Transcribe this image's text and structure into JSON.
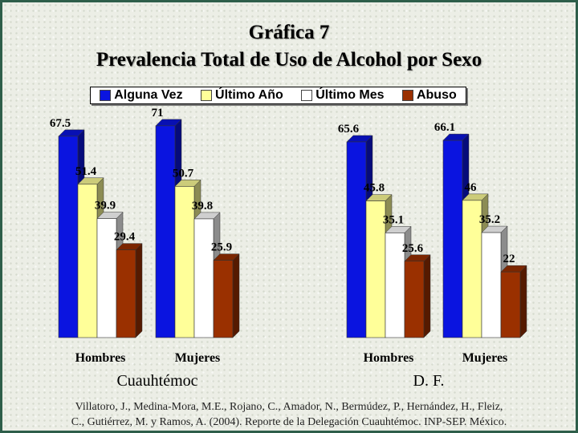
{
  "chart_data": {
    "type": "bar",
    "title": "Gráfica 7",
    "subtitle": "Prevalencia Total de Uso de Alcohol por Sexo",
    "groups": [
      "Cuauhtémoc",
      "D. F."
    ],
    "categories": [
      "Hombres",
      "Mujeres"
    ],
    "series": [
      {
        "name": "Alguna Vez",
        "color": "#0a14e0",
        "values": [
          [
            67.5,
            71
          ],
          [
            65.6,
            66.1
          ]
        ]
      },
      {
        "name": "Último Año",
        "color": "#ffff99",
        "values": [
          [
            51.4,
            50.7
          ],
          [
            45.8,
            46
          ]
        ]
      },
      {
        "name": "Último Mes",
        "color": "#ffffff",
        "values": [
          [
            39.9,
            39.8
          ],
          [
            35.1,
            35.2
          ]
        ]
      },
      {
        "name": "Abuso",
        "color": "#9a3000",
        "values": [
          [
            29.4,
            25.9
          ],
          [
            25.6,
            22
          ]
        ]
      }
    ],
    "value_labels": [
      [
        "67.5",
        "71"
      ],
      [
        "65.6",
        "66.1"
      ],
      [
        "51.4",
        "50.7"
      ],
      [
        "45.8",
        "46"
      ],
      [
        "39.9",
        "39.8"
      ],
      [
        "35.1",
        "35.2"
      ],
      [
        "29.4",
        "25.9"
      ],
      [
        "25.6",
        "22"
      ]
    ],
    "ylim": [
      0,
      80
    ],
    "grid": false,
    "legend_position": "top"
  },
  "source": {
    "line1": "Villatoro, J., Medina-Mora, M.E., Rojano, C., Amador, N., Bermúdez, P., Hernández, H., Fleiz,",
    "line2": "C., Gutiérrez, M. y Ramos, A. (2004). Reporte de la Delegación Cuauhtémoc. INP-SEP. México."
  }
}
